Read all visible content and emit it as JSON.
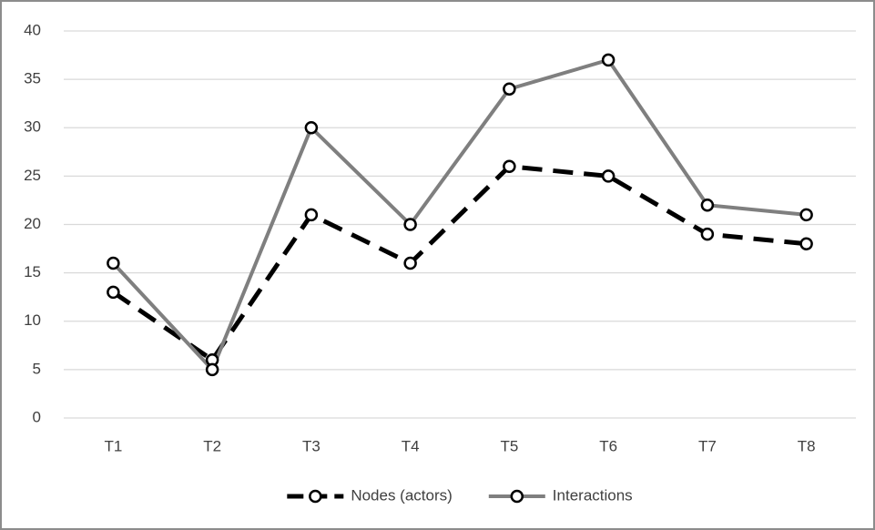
{
  "chart_data": {
    "type": "line",
    "categories": [
      "T1",
      "T2",
      "T3",
      "T4",
      "T5",
      "T6",
      "T7",
      "T8"
    ],
    "series": [
      {
        "name": "Nodes (actors)",
        "color": "#000000",
        "dashed": true,
        "values": [
          13,
          6,
          21,
          16,
          26,
          25,
          19,
          18
        ]
      },
      {
        "name": "Interactions",
        "color": "#7f7f7f",
        "dashed": false,
        "values": [
          16,
          5,
          30,
          20,
          34,
          37,
          22,
          21
        ]
      }
    ],
    "ylim": [
      0,
      40
    ],
    "yticks": [
      0,
      5,
      10,
      15,
      20,
      25,
      30,
      35,
      40
    ],
    "grid": true,
    "legend": "bottom"
  }
}
